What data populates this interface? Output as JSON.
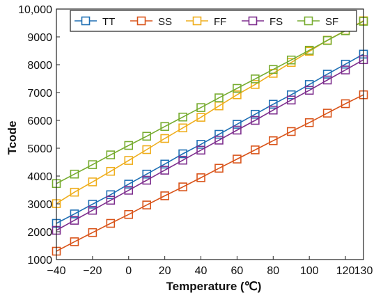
{
  "chart_data": {
    "type": "line",
    "title": "",
    "xlabel": "Temperature (℃)",
    "ylabel": "Tcode",
    "xlim": [
      -40,
      130
    ],
    "ylim": [
      1000,
      10000
    ],
    "xticks": [
      -40,
      -20,
      0,
      20,
      40,
      60,
      80,
      100,
      120,
      130
    ],
    "xtick_labels": [
      "−40",
      "−20",
      "0",
      "20",
      "40",
      "60",
      "80",
      "100",
      "120",
      "130"
    ],
    "yticks": [
      1000,
      2000,
      3000,
      4000,
      5000,
      6000,
      7000,
      8000,
      9000,
      10000
    ],
    "ytick_labels": [
      "1000",
      "2000",
      "3000",
      "4000",
      "5000",
      "6000",
      "7000",
      "8000",
      "9000",
      "10,000"
    ],
    "grid": false,
    "legend_position": "top",
    "x": [
      -40,
      -30,
      -20,
      -10,
      0,
      10,
      20,
      30,
      40,
      50,
      60,
      70,
      80,
      90,
      100,
      110,
      120,
      130
    ],
    "series": [
      {
        "name": "TT",
        "color": "#1f6fb4",
        "marker": "square",
        "values": [
          2300,
          2640,
          2990,
          3330,
          3710,
          4070,
          4430,
          4800,
          5140,
          5500,
          5860,
          6220,
          6580,
          6920,
          7290,
          7660,
          8020,
          8380
        ]
      },
      {
        "name": "SS",
        "color": "#d9541a",
        "marker": "square",
        "values": [
          1300,
          1640,
          1970,
          2300,
          2620,
          2960,
          3290,
          3610,
          3940,
          4280,
          4610,
          4940,
          5270,
          5600,
          5920,
          6260,
          6600,
          6920
        ]
      },
      {
        "name": "FF",
        "color": "#efae1d",
        "marker": "square",
        "values": [
          3010,
          3420,
          3790,
          4170,
          4560,
          4950,
          5350,
          5730,
          6110,
          6520,
          6920,
          7290,
          7690,
          8080,
          8480,
          8880,
          9230,
          9580
        ]
      },
      {
        "name": "FS",
        "color": "#7e2f8e",
        "marker": "square",
        "values": [
          2050,
          2410,
          2770,
          3130,
          3490,
          3850,
          4210,
          4570,
          4930,
          5290,
          5650,
          6000,
          6370,
          6730,
          7080,
          7450,
          7810,
          8180
        ]
      },
      {
        "name": "SF",
        "color": "#77ac30",
        "marker": "square",
        "values": [
          3730,
          4070,
          4410,
          4760,
          5100,
          5430,
          5780,
          6120,
          6460,
          6810,
          7150,
          7490,
          7830,
          8170,
          8520,
          8870,
          9220,
          9560
        ]
      }
    ]
  }
}
